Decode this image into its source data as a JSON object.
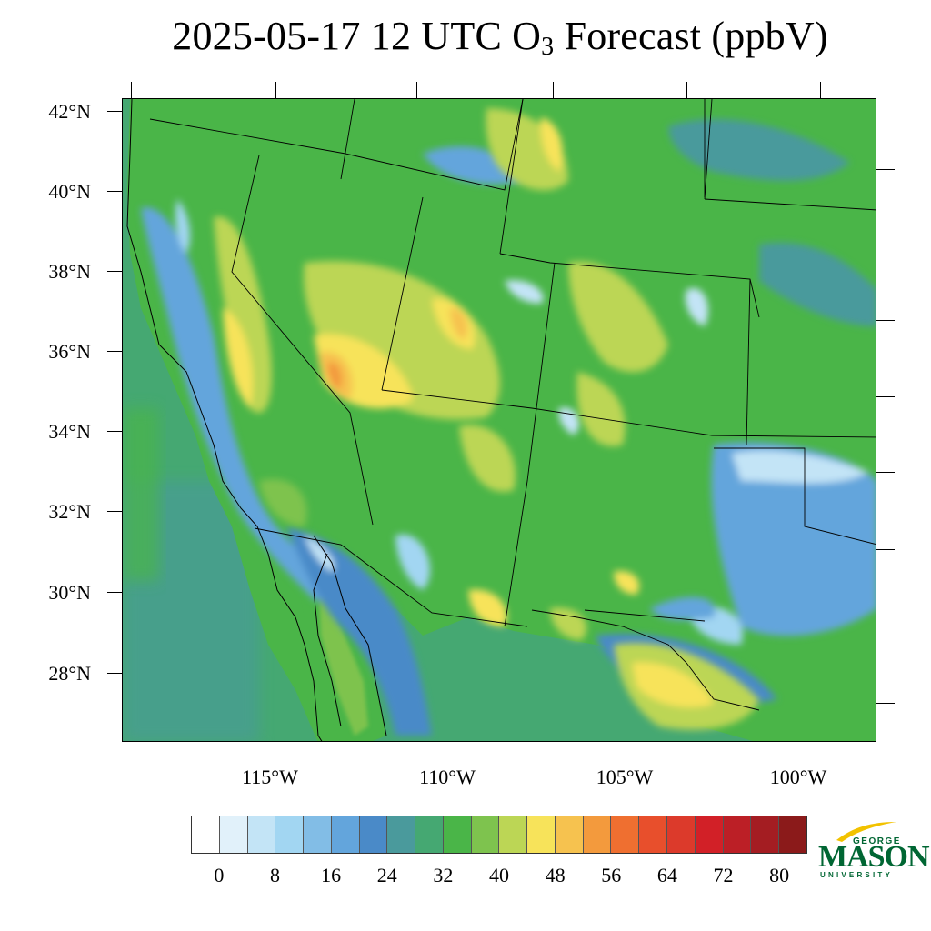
{
  "title": {
    "main": "2025-05-17 12 UTC O",
    "subscript": "3",
    "suffix": " Forecast (ppbV)"
  },
  "map": {
    "lat_labels": [
      "42°N",
      "40°N",
      "38°N",
      "36°N",
      "34°N",
      "32°N",
      "30°N",
      "28°N"
    ],
    "lon_labels": [
      "115°W",
      "110°W",
      "105°W",
      "100°W"
    ],
    "ocean_color": "#45a872"
  },
  "colorbar": {
    "colors": [
      "#ffffff",
      "#e1f1fa",
      "#c3e4f6",
      "#a2d6f2",
      "#82bde6",
      "#63a5dc",
      "#4a8ac8",
      "#4a9a9c",
      "#45a872",
      "#4ab548",
      "#7ec34e",
      "#bcd655",
      "#f7e35a",
      "#f6c24f",
      "#f39a3d",
      "#ef6f30",
      "#e84f2c",
      "#dc3a2b",
      "#d22027",
      "#bc1f26",
      "#a41d22",
      "#8b1a1a"
    ],
    "labels": [
      "0",
      "8",
      "16",
      "24",
      "32",
      "40",
      "48",
      "56",
      "64",
      "72",
      "80"
    ]
  },
  "logo": {
    "george": "GEORGE",
    "mason": "MASON",
    "university": "UNIVERSITY",
    "color": "#006633",
    "accent": "#f2c200"
  }
}
